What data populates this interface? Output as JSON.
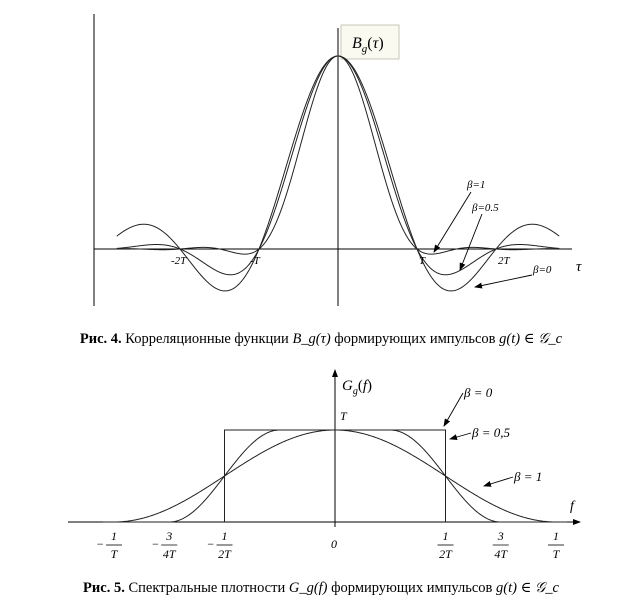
{
  "figure4": {
    "caption": {
      "prefix": "Рис. 4.",
      "text1": "Корреляционные функции",
      "math1": "B_g(τ)",
      "text2": "формирующих импульсов",
      "math2": "g(t) ∈ 𝒢_c"
    },
    "ylabel": "B_g(τ)",
    "xlabel": "τ",
    "series_labels": [
      "β=1",
      "β=0.5",
      "β=0"
    ],
    "chart_data": {
      "type": "line",
      "title": "",
      "x_ticks": [
        "-2T",
        "-T",
        "T",
        "2T"
      ],
      "x_tick_values": [
        -2,
        -1,
        1,
        2
      ],
      "xlim": [
        -2.8,
        2.8
      ],
      "ylim": [
        -0.25,
        1.05
      ],
      "series": [
        {
          "name": "β=1",
          "x": [
            -2.8,
            -2,
            -1.5,
            -1,
            -0.5,
            0,
            0.5,
            1,
            1.5,
            2,
            2.8
          ],
          "y": [
            0,
            0,
            -0.01,
            0,
            0.59,
            1.0,
            0.59,
            0,
            -0.01,
            0,
            0
          ]
        },
        {
          "name": "β=0.5",
          "x": [
            -2.8,
            -2.5,
            -2,
            -1.5,
            -1,
            -0.5,
            0,
            0.5,
            1,
            1.5,
            2,
            2.5,
            2.8
          ],
          "y": [
            0.01,
            0.03,
            0,
            -0.09,
            0,
            0.61,
            1.0,
            0.61,
            0,
            -0.09,
            0,
            0.03,
            0.01
          ]
        },
        {
          "name": "β=0",
          "x": [
            -2.8,
            -2.5,
            -2,
            -1.5,
            -1,
            -0.5,
            0,
            0.5,
            1,
            1.5,
            2,
            2.5,
            2.8
          ],
          "y": [
            0.07,
            0.13,
            0,
            -0.21,
            0,
            0.64,
            1.0,
            0.64,
            0,
            -0.21,
            0,
            0.13,
            0.07
          ]
        }
      ]
    }
  },
  "figure5": {
    "caption": {
      "prefix": "Рис. 5.",
      "text1": "Спектральные плотности",
      "math1": "G_g(f)",
      "text2": "формирующих импульсов",
      "math2": "g(t) ∈ 𝒢_c"
    },
    "ylabel": "G_g(f)",
    "xlabel": "f",
    "peak_label": "T",
    "series_labels": [
      "β = 0",
      "β = 0,5",
      "β = 1"
    ],
    "chart_data": {
      "type": "line",
      "title": "",
      "x_ticks": [
        "-1/T",
        "-3/(4T)",
        "-1/(2T)",
        "0",
        "1/(2T)",
        "3/(4T)",
        "1/T"
      ],
      "x_tick_values": [
        -1,
        -0.75,
        -0.5,
        0,
        0.5,
        0.75,
        1
      ],
      "ylim": [
        0,
        1.1
      ],
      "series": [
        {
          "name": "β = 0",
          "x": [
            -0.5,
            -0.5,
            0.5,
            0.5
          ],
          "y": [
            0,
            1,
            1,
            0
          ]
        },
        {
          "name": "β = 0,5",
          "x": [
            -0.75,
            -0.5,
            -0.25,
            0,
            0.25,
            0.5,
            0.75
          ],
          "y": [
            0,
            0.5,
            1,
            1,
            1,
            0.5,
            0
          ]
        },
        {
          "name": "β = 1",
          "x": [
            -1,
            -0.75,
            -0.5,
            -0.25,
            0,
            0.25,
            0.5,
            0.75,
            1
          ],
          "y": [
            0,
            0.15,
            0.5,
            0.85,
            1,
            0.85,
            0.5,
            0.15,
            0
          ]
        }
      ]
    }
  }
}
